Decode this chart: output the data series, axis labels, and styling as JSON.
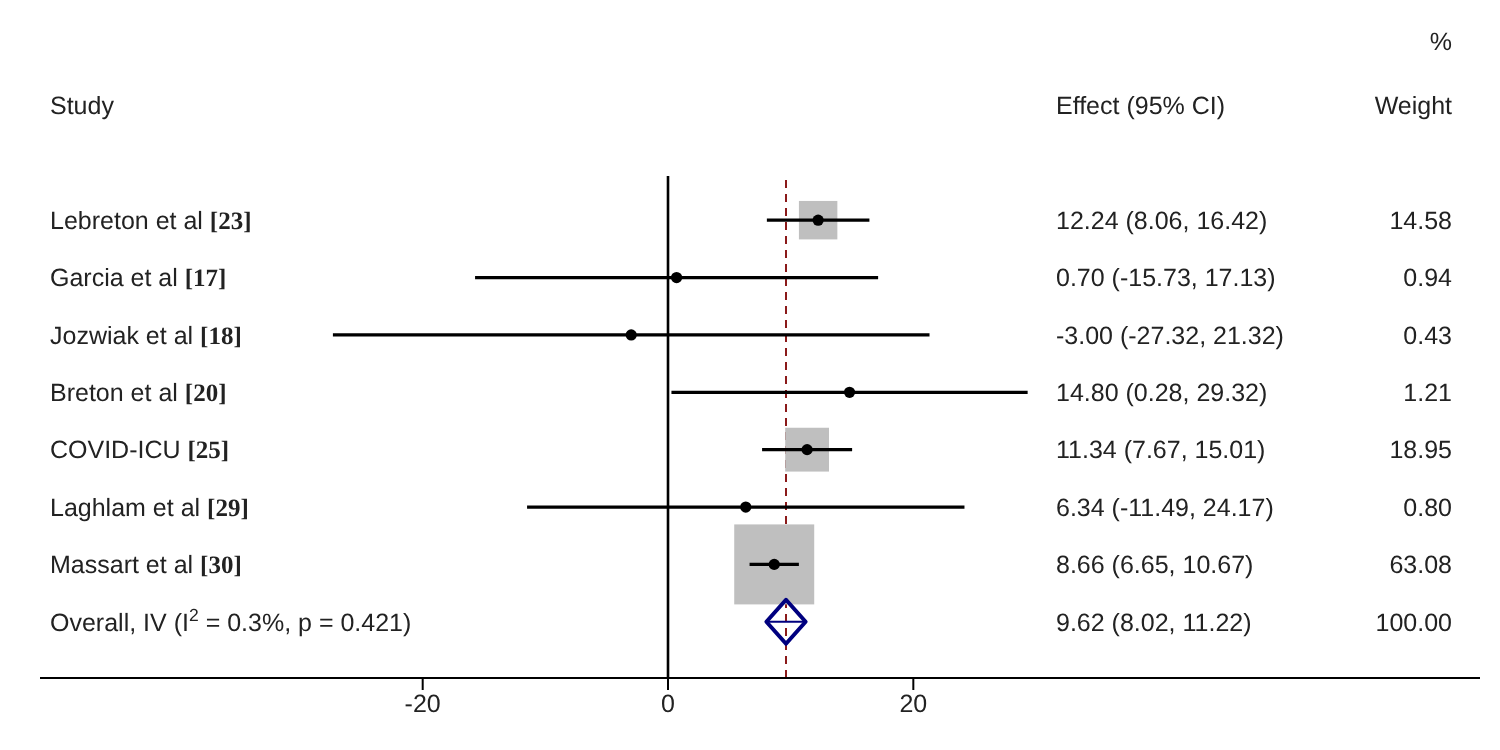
{
  "chart_data": {
    "type": "scatter",
    "orientation": "horizontal",
    "categories": [
      "Lebreton et al [23]",
      "Garcia et al [17]",
      "Jozwiak et al [18]",
      "Breton et al [20]",
      "COVID-ICU [25]",
      "Laghlam et al [29]",
      "Massart et al [30]",
      "Overall, IV (I$^{2}$ = 0.3%, p = 0.421)"
    ],
    "series": [
      {
        "marker": "square",
        "color": "#bfbfbf",
        "values": [
          12.24,
          null,
          null,
          null,
          11.34,
          null,
          8.66,
          null
        ],
        "sizes": [
          0.231,
          null,
          null,
          null,
          0.3,
          null,
          1,
          null
        ]
      },
      {
        "marker": "circle",
        "color": "#000000",
        "values": [
          12.24,
          0.7,
          -3.0,
          14.8,
          11.34,
          6.34,
          8.66,
          null
        ],
        "errors": [
          [
            8.06,
            16.42
          ],
          [
            -15.73,
            17.13
          ],
          [
            -27.32,
            21.32
          ],
          [
            0.28,
            29.32
          ],
          [
            7.67,
            15.01
          ],
          [
            -11.49,
            24.17
          ],
          [
            6.65,
            10.67
          ],
          null
        ]
      },
      {
        "marker": "diamond",
        "color": "#00007f",
        "values": [
          null,
          null,
          null,
          null,
          null,
          null,
          null,
          9.62
        ],
        "errors": [
          null,
          null,
          null,
          null,
          null,
          null,
          null,
          [
            8.02,
            11.22
          ]
        ]
      }
    ],
    "xlim": [
      -51.2,
      66.2
    ],
    "xticks": [
      -20,
      0,
      20
    ],
    "ref_lines": [
      {
        "axis": "x",
        "value": 0,
        "color": "#000000"
      },
      {
        "axis": "x",
        "value": 9.62,
        "color": "#8b1a1a",
        "line_style": "dashed"
      }
    ],
    "annotations": [
      "%",
      "Study",
      "Effect (95% CI)",
      "Weight",
      "12.24 (8.06, 16.42)",
      "14.58",
      "0.70 (-15.73, 17.13)",
      "0.94",
      "-3.00 (-27.32, 21.32)",
      "0.43",
      "14.80 (0.28, 29.32)",
      "1.21",
      "11.34 (7.67, 15.01)",
      "18.95",
      "6.34 (-11.49, 24.17)",
      "0.80",
      "8.66 (6.65, 10.67)",
      "63.08",
      "9.62 (8.02, 11.22)",
      "100.00"
    ]
  }
}
